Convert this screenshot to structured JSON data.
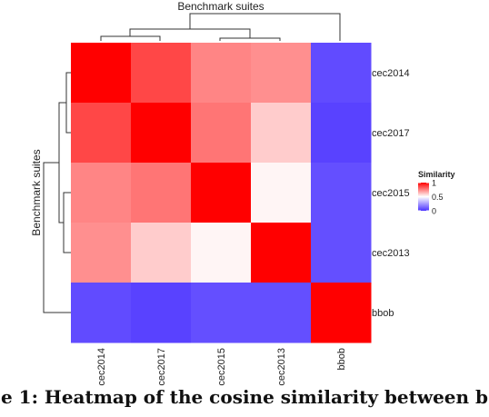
{
  "caption": "e 1: Heatmap of the cosine similarity between b",
  "chart_data": {
    "type": "heatmap",
    "title": "Benchmark suites",
    "ylabel": "Benchmark suites",
    "x_categories": [
      "cec2014",
      "cec2017",
      "cec2015",
      "cec2013",
      "bbob"
    ],
    "y_categories": [
      "cec2014",
      "cec2017",
      "cec2015",
      "cec2013",
      "bbob"
    ],
    "values": [
      [
        1.0,
        0.86,
        0.74,
        0.72,
        0.06
      ],
      [
        0.86,
        1.0,
        0.77,
        0.6,
        0.04
      ],
      [
        0.74,
        0.77,
        1.0,
        0.52,
        0.07
      ],
      [
        0.72,
        0.6,
        0.52,
        1.0,
        0.07
      ],
      [
        0.06,
        0.04,
        0.07,
        0.07,
        1.0
      ]
    ],
    "color_scale": {
      "low": "#4B32FF",
      "mid": "#FFFFFF",
      "high": "#FF0000",
      "min": 0,
      "max": 1
    },
    "legend": {
      "title": "Similarity",
      "ticks": [
        {
          "label": "1",
          "value": 1
        },
        {
          "label": "0.5",
          "value": 0.5
        },
        {
          "label": "0",
          "value": 0
        }
      ],
      "position": "right"
    },
    "dendrograms": [
      "top",
      "left"
    ]
  }
}
